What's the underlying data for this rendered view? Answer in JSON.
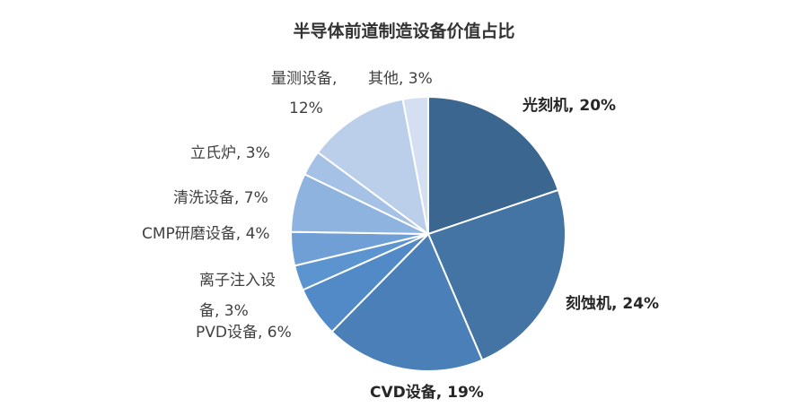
{
  "chart_data": {
    "type": "pie",
    "title": "半导体前道制造设备价值占比",
    "start_angle_deg": 0,
    "direction": "clockwise",
    "slices": [
      {
        "name": "光刻机",
        "value": 20,
        "label": "光刻机, 20%",
        "color": "#3a6690",
        "bold": true
      },
      {
        "name": "刻蚀机",
        "value": 24,
        "label": "刻蚀机, 24%",
        "color": "#4474a3",
        "bold": true
      },
      {
        "name": "CVD设备",
        "value": 19,
        "label": "CVD设备, 19%",
        "color": "#4a7fb8",
        "bold": true
      },
      {
        "name": "PVD设备",
        "value": 6,
        "label": "PVD设备, 6%",
        "color": "#518ac7",
        "bold": false
      },
      {
        "name": "离子注入设备",
        "value": 3,
        "label_lines": [
          "离子注入设",
          "备, 3%"
        ],
        "color": "#5c94d0",
        "bold": false
      },
      {
        "name": "CMP研磨设备",
        "value": 4,
        "label": "CMP研磨设备, 4%",
        "color": "#6f9fd4",
        "bold": false
      },
      {
        "name": "清洗设备",
        "value": 7,
        "label": "清洗设备, 7%",
        "color": "#8eb3de",
        "bold": false
      },
      {
        "name": "立氏炉",
        "value": 3,
        "label": "立氏炉, 3%",
        "color": "#a5c1e5",
        "bold": false
      },
      {
        "name": "量测设备",
        "value": 12,
        "label_lines": [
          "量测设备,",
          "12%"
        ],
        "color": "#bccfea",
        "bold": false
      },
      {
        "name": "其他",
        "value": 3,
        "label": "其他, 3%",
        "color": "#d4e0f2",
        "bold": false
      }
    ],
    "legend": "none"
  }
}
